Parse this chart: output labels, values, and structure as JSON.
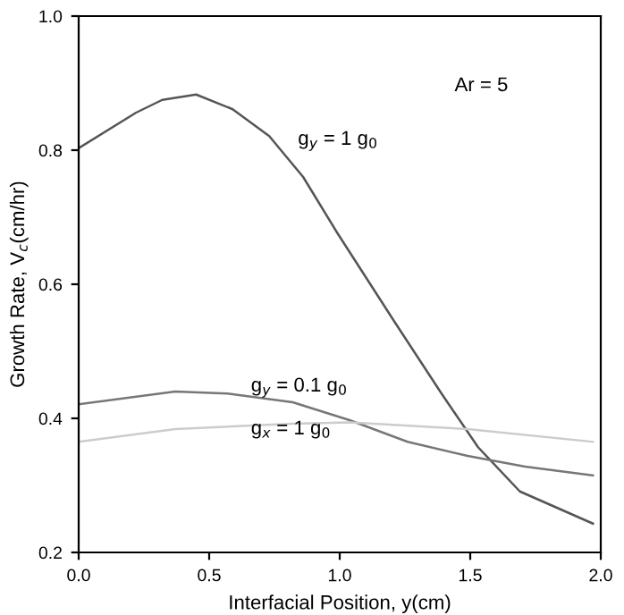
{
  "chart_data": {
    "type": "line",
    "xlabel": "Interfacial Position, y(cm)",
    "ylabel": "Growth Rate, V$_{c}$(cm/hr)",
    "xlim": [
      0.0,
      2.0
    ],
    "ylim": [
      0.2,
      1.0
    ],
    "xticks": [
      {
        "value": 0,
        "label": "0.0"
      },
      0.5,
      {
        "value": 1,
        "label": "1.0"
      },
      1.5,
      {
        "value": 2,
        "label": "2.0"
      }
    ],
    "yticks": [
      0.2,
      0.4,
      0.6,
      0.8,
      {
        "value": 1,
        "label": "1.0"
      }
    ],
    "grid": false,
    "legend": false,
    "marker": "none",
    "line_style": "solid",
    "annotations": [
      "Ar = 5"
    ],
    "series": [
      {
        "name": "g$_{y}$ = 1 g$_{0}$",
        "color": "#555555",
        "x": [
          0.0,
          0.22,
          0.32,
          0.45,
          0.59,
          0.73,
          0.86,
          0.99,
          1.21,
          1.39,
          1.53,
          1.69,
          1.97
        ],
        "values": [
          0.803,
          0.856,
          0.875,
          0.883,
          0.861,
          0.821,
          0.76,
          0.677,
          0.544,
          0.437,
          0.357,
          0.291,
          0.243
        ]
      },
      {
        "name": "g$_{y}$ = 0.1 g$_{0}$",
        "color": "#777777",
        "x": [
          0.0,
          0.37,
          0.57,
          0.82,
          1.04,
          1.26,
          1.49,
          1.71,
          1.97
        ],
        "values": [
          0.421,
          0.44,
          0.437,
          0.424,
          0.397,
          0.365,
          0.344,
          0.328,
          0.315
        ]
      },
      {
        "name": "g$_{x}$ = 1 g$_{0}$",
        "color": "#cccccc",
        "x": [
          0.0,
          0.37,
          0.82,
          1.04,
          1.49,
          1.97
        ],
        "values": [
          0.365,
          0.384,
          0.392,
          0.394,
          0.384,
          0.365
        ]
      }
    ]
  }
}
